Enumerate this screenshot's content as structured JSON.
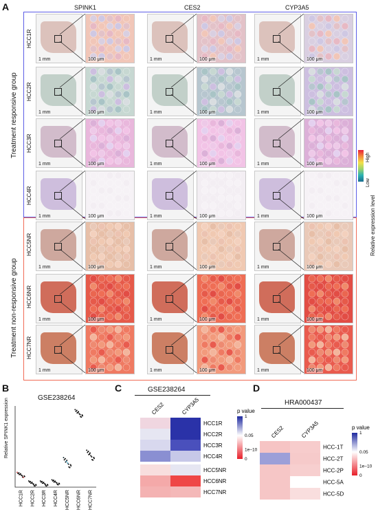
{
  "figure": {
    "panelA": {
      "label": "A",
      "genes": [
        "SPINK1",
        "CES2",
        "CYP3A5"
      ],
      "responsive_group_label": "Treatment responsive group",
      "nonresponsive_group_label": "Treatment non-responsive group",
      "samples_responsive": [
        "HCC1R",
        "HCC2R",
        "HCC3R",
        "HCC4R"
      ],
      "samples_nonresponsive": [
        "HCC5NR",
        "HCC6NR",
        "HCC7NR"
      ],
      "scalebar_whole": "1 mm",
      "scalebar_zoom": "100 μm",
      "colorbar": {
        "high": "High",
        "low": "Low",
        "title": "Relative expression level"
      },
      "colors": {
        "responsive_border": "#5b5ce6",
        "nonresponsive_border": "#f06a55"
      }
    },
    "panelB": {
      "label": "B",
      "title": "GSE238264",
      "ylabel": "Relative SPINK1 expression",
      "categories": [
        "HCC1R",
        "HCC2R",
        "HCC3R",
        "HCC4R",
        "HCC5NR",
        "HCC6NR",
        "HCC7NR"
      ]
    },
    "panelC": {
      "label": "C",
      "title": "GSE238264",
      "columns": [
        "CES2",
        "CYP3A5"
      ],
      "rows": [
        "HCC1R",
        "HCC2R",
        "HCC3R",
        "HCC4R",
        "HCC5NR",
        "HCC6NR",
        "HCC7NR"
      ],
      "legend_title": "p value",
      "legend_ticks": [
        "1",
        "0.05",
        "1e−10",
        "0"
      ]
    },
    "panelD": {
      "label": "D",
      "title": "HRA000437",
      "columns": [
        "CES2",
        "CYP3A5"
      ],
      "rows": [
        "HCC-1T",
        "HCC-2T",
        "HCC-2P",
        "HCC-5A",
        "HCC-5D"
      ],
      "legend_title": "p value",
      "legend_ticks": [
        "1",
        "0.05",
        "1e−10",
        "0"
      ]
    }
  },
  "chart_data": [
    {
      "type": "scatter",
      "title": "GSE238264",
      "ylabel": "Relative SPINK1 expression",
      "categories": [
        "HCC1R",
        "HCC2R",
        "HCC3R",
        "HCC4R",
        "HCC5NR",
        "HCC6NR",
        "HCC7NR"
      ],
      "series": [
        {
          "values": [
            0.5,
            0.15,
            0.15,
            0.2,
            1.0,
            3.0,
            1.3
          ]
        }
      ]
    },
    {
      "type": "heatmap",
      "title": "GSE238264",
      "columns": [
        "CES2",
        "CYP3A5"
      ],
      "rows": [
        "HCC1R",
        "HCC2R",
        "HCC3R",
        "HCC4R",
        "HCC5NR",
        "HCC6NR",
        "HCC7NR"
      ],
      "cell_colors": [
        [
          "#f0d6e0",
          "#2a32a8"
        ],
        [
          "#e6e6f2",
          "#2a32a8"
        ],
        [
          "#d8d8ee",
          "#4a50bc"
        ],
        [
          "#8a8fd2",
          "#c7c8e8"
        ],
        [
          "#f8dede",
          "#e6e6f2"
        ],
        [
          "#f4a9a9",
          "#ef4646"
        ],
        [
          "#f4b2b2",
          "#f4b8b8"
        ]
      ]
    },
    {
      "type": "heatmap",
      "title": "HRA000437",
      "columns": [
        "CES2",
        "CYP3A5"
      ],
      "rows": [
        "HCC-1T",
        "HCC-2T",
        "HCC-2P",
        "HCC-5A",
        "HCC-5D"
      ],
      "cell_colors": [
        [
          "#f6c4c4",
          "#f7cccc"
        ],
        [
          "#9c9fd8",
          "#f6caca"
        ],
        [
          "#f6c6c6",
          "#f7cfcf"
        ],
        [
          "#f6c6c6",
          "#ffffff"
        ],
        [
          "#f6c6c6",
          "#f9dede"
        ]
      ]
    }
  ]
}
